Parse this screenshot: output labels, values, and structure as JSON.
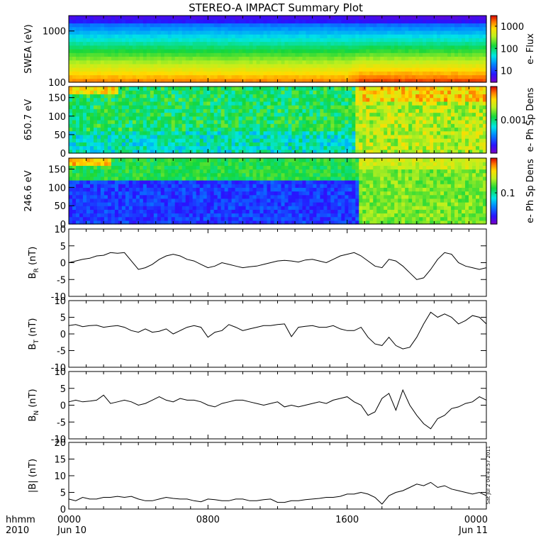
{
  "title": "STEREO-A IMPACT Summary Plot",
  "stamp": "Sat Jul  2 04:43:57 2011",
  "x_axis": {
    "row_label_1": "hhmm",
    "row_label_2": "2010",
    "ticks": [
      {
        "hour": 0,
        "label": "0000",
        "sub": "Jun 10"
      },
      {
        "hour": 8,
        "label": "0800",
        "sub": ""
      },
      {
        "hour": 16,
        "label": "1600",
        "sub": ""
      },
      {
        "hour": 24,
        "label": "0000",
        "sub": "Jun 11"
      }
    ]
  },
  "chart_data": [
    {
      "type": "heatmap",
      "name": "swea-spectrogram",
      "ylabel": "SWEA (eV)",
      "y_scale": "log",
      "ylim": [
        100,
        2000
      ],
      "yticks": [
        {
          "value": 100,
          "label": "100"
        },
        {
          "value": 1000,
          "label": "1000"
        }
      ],
      "colorbar": {
        "label": "e- Flux",
        "scale": "log",
        "range": [
          3,
          3000
        ],
        "ticks": [
          {
            "value": 10,
            "label": "10"
          },
          {
            "value": 100,
            "label": "100"
          },
          {
            "value": 1000,
            "label": "1000"
          }
        ]
      },
      "x_hours": [
        0,
        16.4,
        17.2,
        24
      ],
      "band_centers_eV": [
        220,
        230,
        260,
        270
      ]
    },
    {
      "type": "heatmap",
      "name": "pad-650",
      "ylabel": "650.7 eV",
      "ylim": [
        0,
        180
      ],
      "yticks": [
        {
          "value": 0,
          "label": "0"
        },
        {
          "value": 50,
          "label": "50"
        },
        {
          "value": 100,
          "label": "100"
        },
        {
          "value": 150,
          "label": "150"
        }
      ],
      "colorbar": {
        "label": "e- Ph Sp Dens",
        "scale": "log",
        "range": [
          0.0001,
          0.01
        ],
        "ticks": [
          {
            "value": 0.001,
            "label": "0.001"
          }
        ]
      },
      "transition_hour": 16.5
    },
    {
      "type": "heatmap",
      "name": "pad-246",
      "ylabel": "246.6 eV",
      "ylim": [
        0,
        180
      ],
      "yticks": [
        {
          "value": 0,
          "label": "0"
        },
        {
          "value": 50,
          "label": "50"
        },
        {
          "value": 100,
          "label": "100"
        },
        {
          "value": 150,
          "label": "150"
        }
      ],
      "colorbar": {
        "label": "e- Ph Sp Dens",
        "scale": "log",
        "range": [
          0.02,
          0.6
        ],
        "ticks": [
          {
            "value": 0.1,
            "label": "0.1"
          }
        ]
      },
      "transition_hour": 16.6
    },
    {
      "type": "line",
      "name": "br",
      "ylabel": "B",
      "ylabel_sub": "R",
      "ylabel_unit": " (nT)",
      "ylim": [
        -10,
        10
      ],
      "yticks": [
        {
          "value": -10,
          "label": "-10"
        },
        {
          "value": -5,
          "label": "-5"
        },
        {
          "value": 0,
          "label": "0"
        },
        {
          "value": 5,
          "label": "5"
        },
        {
          "value": 10,
          "label": "10"
        }
      ],
      "x": [
        0,
        0.4,
        0.8,
        1.2,
        1.6,
        2,
        2.4,
        2.8,
        3.2,
        3.6,
        4,
        4.4,
        4.8,
        5.2,
        5.6,
        6,
        6.4,
        6.8,
        7.2,
        7.6,
        8,
        8.4,
        8.8,
        9.2,
        9.6,
        10,
        10.4,
        10.8,
        11.2,
        11.6,
        12,
        12.4,
        12.8,
        13.2,
        13.6,
        14,
        14.4,
        14.8,
        15.2,
        15.6,
        16,
        16.4,
        16.8,
        17.2,
        17.6,
        18,
        18.4,
        18.8,
        19.2,
        19.6,
        20,
        20.4,
        20.8,
        21.2,
        21.6,
        22,
        22.4,
        22.8,
        23.2,
        23.6,
        24
      ],
      "y": [
        0,
        0.5,
        1,
        1.3,
        2,
        2.2,
        3,
        2.8,
        3,
        0.5,
        -2,
        -1.5,
        -0.5,
        1,
        2,
        2.5,
        2,
        1,
        0.5,
        -0.5,
        -1.5,
        -1,
        0,
        -0.5,
        -1,
        -1.5,
        -1.2,
        -1,
        -0.5,
        0,
        0.5,
        0.7,
        0.5,
        0.2,
        0.8,
        1,
        0.5,
        0,
        1,
        2,
        2.5,
        3,
        2,
        0.5,
        -1,
        -1.5,
        1,
        0.5,
        -1,
        -3,
        -5,
        -4.5,
        -2,
        1,
        3,
        2.5,
        0,
        -1,
        -1.5,
        -2,
        -1.5
      ]
    },
    {
      "type": "line",
      "name": "bt",
      "ylabel": "B",
      "ylabel_sub": "T",
      "ylabel_unit": " (nT)",
      "ylim": [
        -10,
        10
      ],
      "yticks": [
        {
          "value": -10,
          "label": "-10"
        },
        {
          "value": -5,
          "label": "-5"
        },
        {
          "value": 0,
          "label": "0"
        },
        {
          "value": 5,
          "label": "5"
        },
        {
          "value": 10,
          "label": "10"
        }
      ],
      "x": [
        0,
        0.4,
        0.8,
        1.2,
        1.6,
        2,
        2.4,
        2.8,
        3.2,
        3.6,
        4,
        4.4,
        4.8,
        5.2,
        5.6,
        6,
        6.4,
        6.8,
        7.2,
        7.6,
        8,
        8.4,
        8.8,
        9.2,
        9.6,
        10,
        10.4,
        10.8,
        11.2,
        11.6,
        12,
        12.4,
        12.8,
        13.2,
        13.6,
        14,
        14.4,
        14.8,
        15.2,
        15.6,
        16,
        16.4,
        16.8,
        17.2,
        17.6,
        18,
        18.4,
        18.8,
        19.2,
        19.6,
        20,
        20.4,
        20.8,
        21.2,
        21.6,
        22,
        22.4,
        22.8,
        23.2,
        23.6,
        24
      ],
      "y": [
        2.5,
        2.8,
        2.2,
        2.5,
        2.6,
        2,
        2.3,
        2.5,
        2,
        1,
        0.5,
        1.5,
        0.5,
        0.8,
        1.5,
        0,
        1,
        2,
        2.5,
        2,
        -1,
        0.5,
        1,
        2.8,
        2,
        1,
        1.5,
        2,
        2.5,
        2.5,
        2.8,
        3,
        -0.8,
        2,
        2.3,
        2.5,
        2,
        2,
        2.5,
        1.5,
        1,
        1,
        2,
        -1,
        -3,
        -3.5,
        -1,
        -3.5,
        -4.5,
        -4,
        -1,
        3,
        6.5,
        5,
        6,
        5,
        3,
        4,
        5.5,
        5,
        3
      ]
    },
    {
      "type": "line",
      "name": "bn",
      "ylabel": "B",
      "ylabel_sub": "N",
      "ylabel_unit": " (nT)",
      "ylim": [
        -10,
        10
      ],
      "yticks": [
        {
          "value": -10,
          "label": "-10"
        },
        {
          "value": -5,
          "label": "-5"
        },
        {
          "value": 0,
          "label": "0"
        },
        {
          "value": 5,
          "label": "5"
        },
        {
          "value": 10,
          "label": "10"
        }
      ],
      "x": [
        0,
        0.4,
        0.8,
        1.2,
        1.6,
        2,
        2.4,
        2.8,
        3.2,
        3.6,
        4,
        4.4,
        4.8,
        5.2,
        5.6,
        6,
        6.4,
        6.8,
        7.2,
        7.6,
        8,
        8.4,
        8.8,
        9.2,
        9.6,
        10,
        10.4,
        10.8,
        11.2,
        11.6,
        12,
        12.4,
        12.8,
        13.2,
        13.6,
        14,
        14.4,
        14.8,
        15.2,
        15.6,
        16,
        16.4,
        16.8,
        17.2,
        17.6,
        18,
        18.4,
        18.8,
        19.2,
        19.6,
        20,
        20.4,
        20.8,
        21.2,
        21.6,
        22,
        22.4,
        22.8,
        23.2,
        23.6,
        24
      ],
      "y": [
        1,
        1.5,
        1,
        1.2,
        1.5,
        3,
        0.5,
        1,
        1.5,
        1,
        0,
        0.5,
        1.5,
        2.5,
        1.5,
        1,
        2,
        1.5,
        1.5,
        1,
        0,
        -0.5,
        0.5,
        1,
        1.5,
        1.5,
        1,
        0.5,
        0,
        0.5,
        1,
        -0.5,
        0,
        -0.5,
        0,
        0.5,
        1,
        0.5,
        1.5,
        2,
        2.5,
        1,
        0,
        -3,
        -2,
        2,
        3.5,
        -1.5,
        4.5,
        0,
        -3,
        -5.5,
        -7,
        -4,
        -3,
        -1,
        -0.5,
        0.5,
        1,
        2.5,
        1.5
      ]
    },
    {
      "type": "line",
      "name": "bmag",
      "ylabel": "|B| (nT)",
      "ylim": [
        0,
        20
      ],
      "yticks": [
        {
          "value": 0,
          "label": "0"
        },
        {
          "value": 5,
          "label": "5"
        },
        {
          "value": 10,
          "label": "10"
        },
        {
          "value": 15,
          "label": "15"
        },
        {
          "value": 20,
          "label": "20"
        }
      ],
      "x": [
        0,
        0.4,
        0.8,
        1.2,
        1.6,
        2,
        2.4,
        2.8,
        3.2,
        3.6,
        4,
        4.4,
        4.8,
        5.2,
        5.6,
        6,
        6.4,
        6.8,
        7.2,
        7.6,
        8,
        8.4,
        8.8,
        9.2,
        9.6,
        10,
        10.4,
        10.8,
        11.2,
        11.6,
        12,
        12.4,
        12.8,
        13.2,
        13.6,
        14,
        14.4,
        14.8,
        15.2,
        15.6,
        16,
        16.4,
        16.8,
        17.2,
        17.6,
        18,
        18.4,
        18.8,
        19.2,
        19.6,
        20,
        20.4,
        20.8,
        21.2,
        21.6,
        22,
        22.4,
        22.8,
        23.2,
        23.6,
        24
      ],
      "y": [
        3,
        2.5,
        3.5,
        3,
        3,
        3.5,
        3.5,
        3.8,
        3.5,
        3.8,
        3,
        2.5,
        2.5,
        3,
        3.5,
        3.2,
        3,
        3,
        2.5,
        2.2,
        3,
        2.8,
        2.5,
        2.5,
        3,
        3,
        2.5,
        2.5,
        2.8,
        3,
        2,
        2,
        2.5,
        2.5,
        2.8,
        3,
        3.2,
        3.5,
        3.5,
        3.8,
        4.5,
        4.5,
        5,
        4.5,
        3.5,
        1.5,
        4,
        5,
        5.5,
        6.5,
        7.5,
        7,
        8,
        6.5,
        7,
        6,
        5.5,
        5,
        4.5,
        5,
        4
      ]
    }
  ]
}
